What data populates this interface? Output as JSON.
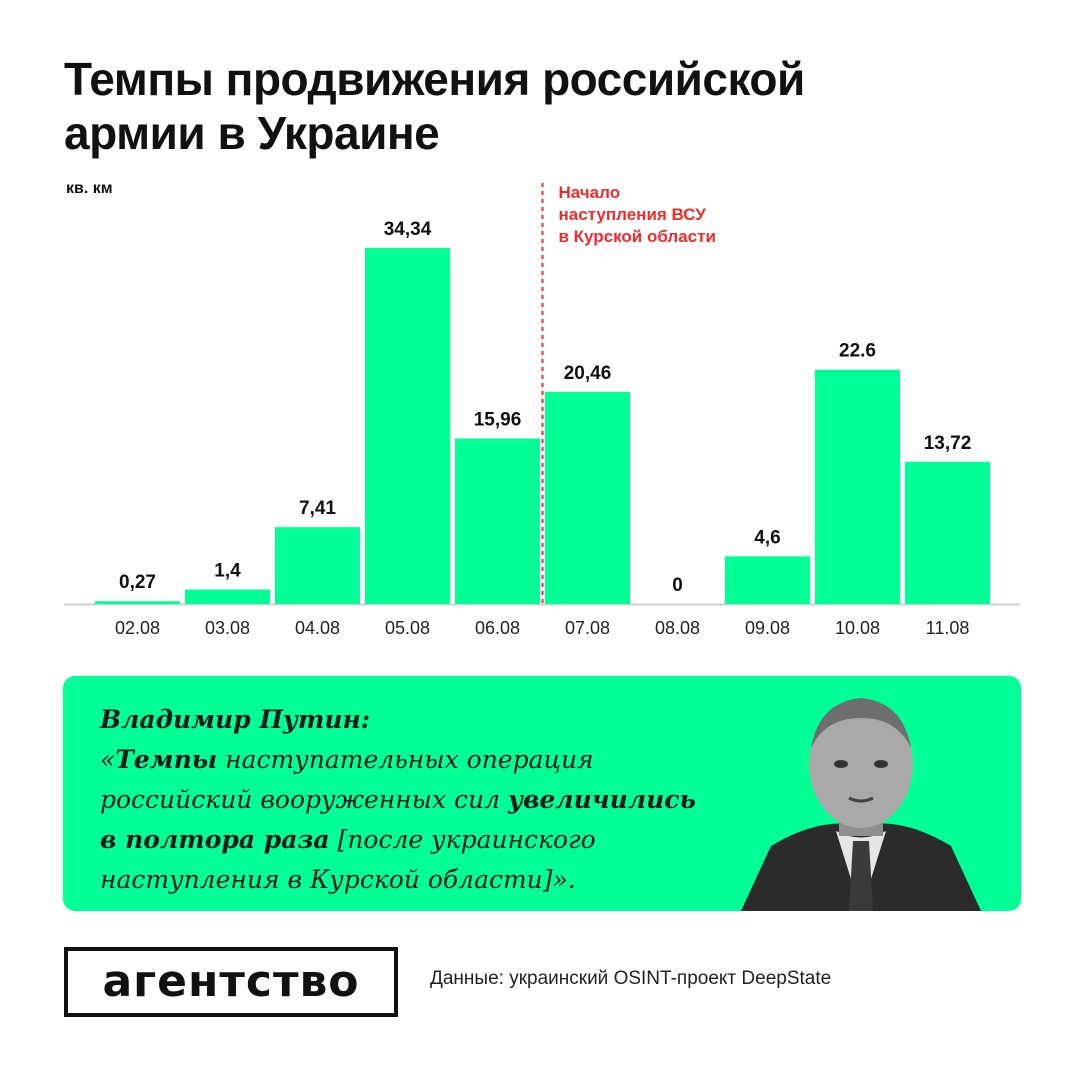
{
  "title_lines": [
    "Темпы продвижения российской",
    "армии в Украине"
  ],
  "chart_data": {
    "type": "bar",
    "unit_label": "кв. км",
    "categories": [
      "02.08",
      "03.08",
      "04.08",
      "05.08",
      "06.08",
      "07.08",
      "08.08",
      "09.08",
      "10.08",
      "11.08"
    ],
    "values": [
      0.27,
      1.4,
      7.41,
      34.34,
      15.96,
      20.46,
      0,
      4.6,
      22.6,
      13.72
    ],
    "value_labels": [
      "0,27",
      "1,4",
      "7,41",
      "34,34",
      "15,96",
      "20,46",
      "0",
      "4,6",
      "22.6",
      "13,72"
    ],
    "ylim": [
      0,
      34.34
    ],
    "bar_color": "#00ff94",
    "annotation": {
      "position_after_category": "06.08",
      "lines": [
        "Начало",
        "наступления ВСУ",
        "в Курской области"
      ],
      "color": "#ef2b2b"
    }
  },
  "quote": {
    "author": "Владимир Путин:",
    "open": "«",
    "bold1": "Темпы",
    "text1": " наступательных операция российский вооруженных сил ",
    "bold2": "увеличились в полтора раза",
    "text2": " [после украинского наступления в Курской области]».",
    "background": "#00ff94"
  },
  "logo": "агентство",
  "source": "Данные: украинский OSINT-проект DeepState"
}
